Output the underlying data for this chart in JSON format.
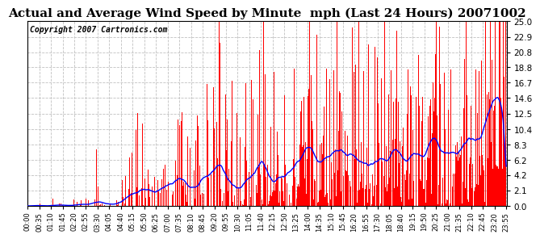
{
  "title": "Actual and Average Wind Speed by Minute  mph (Last 24 Hours) 20071002",
  "copyright_text": "Copyright 2007 Cartronics.com",
  "yticks": [
    0.0,
    2.1,
    4.2,
    6.2,
    8.3,
    10.4,
    12.5,
    14.6,
    16.7,
    18.8,
    20.8,
    22.9,
    25.0
  ],
  "ylim": [
    0,
    25.0
  ],
  "xtick_labels": [
    "00:00",
    "00:35",
    "01:10",
    "01:45",
    "02:20",
    "02:55",
    "03:30",
    "04:05",
    "04:40",
    "05:15",
    "05:50",
    "06:25",
    "07:00",
    "07:35",
    "08:10",
    "08:45",
    "09:20",
    "09:55",
    "10:30",
    "11:05",
    "11:40",
    "12:15",
    "12:50",
    "13:25",
    "14:00",
    "14:35",
    "15:10",
    "15:45",
    "16:20",
    "16:55",
    "17:30",
    "18:05",
    "18:40",
    "19:15",
    "19:50",
    "20:25",
    "21:00",
    "21:35",
    "22:10",
    "22:45",
    "23:20",
    "23:55"
  ],
  "bg_color": "#ffffff",
  "bar_color": "#ff0000",
  "line_color": "#0000ff",
  "grid_color": "#c0c0c0",
  "title_fontsize": 11,
  "copyright_fontsize": 7,
  "n_minutes": 1440
}
